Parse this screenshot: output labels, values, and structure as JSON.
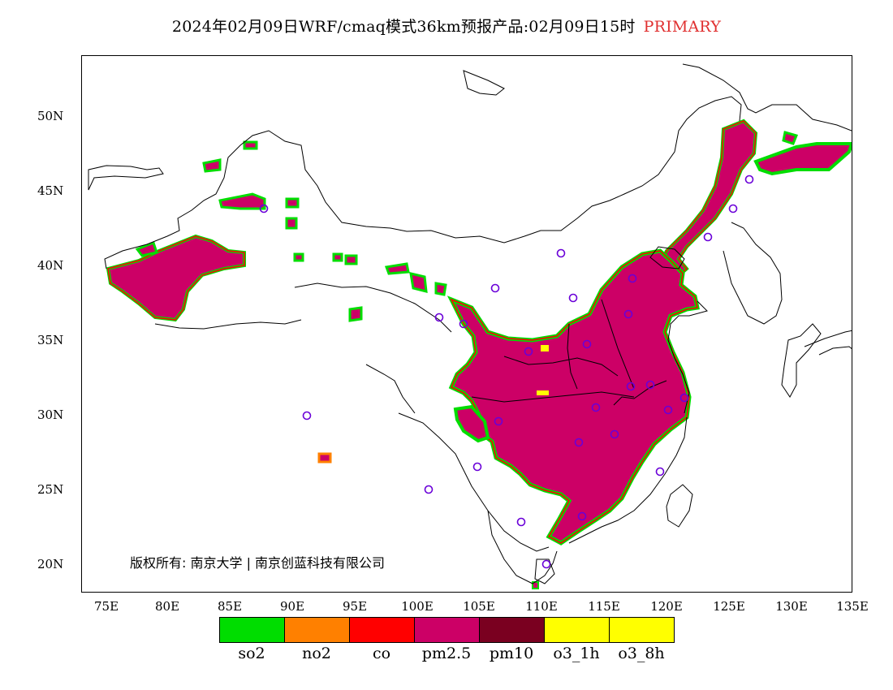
{
  "title": {
    "text": "2024年02月09日WRF/cmaq模式36km预报产品:02月09日15时",
    "highlight": "PRIMARY",
    "highlight_color": "#e03030"
  },
  "axes": {
    "y_labels": [
      "50N",
      "45N",
      "40N",
      "35N",
      "30N",
      "25N",
      "20N"
    ],
    "x_labels": [
      "75E",
      "80E",
      "85E",
      "90E",
      "95E",
      "100E",
      "105E",
      "110E",
      "115E",
      "120E",
      "125E",
      "130E",
      "135E"
    ]
  },
  "copyright": "版权所有: 南京大学 | 南京创蓝科技有限公司",
  "legend": [
    {
      "label": "so2",
      "color": "#00dd00"
    },
    {
      "label": "no2",
      "color": "#ff8000"
    },
    {
      "label": "co",
      "color": "#ff0000"
    },
    {
      "label": "pm2.5",
      "color": "#cc0066"
    },
    {
      "label": "pm10",
      "color": "#7a0020"
    },
    {
      "label": "o3_1h",
      "color": "#ffff00"
    },
    {
      "label": "o3_8h",
      "color": "#ffff00"
    }
  ]
}
